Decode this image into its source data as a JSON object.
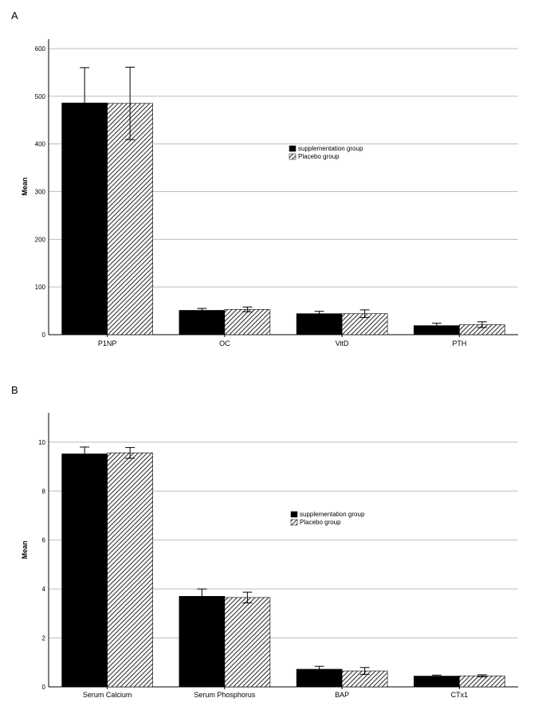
{
  "panels": [
    {
      "label": "A"
    },
    {
      "label": "B"
    }
  ],
  "colors": {
    "supplementation": "#000000",
    "placebo_hatch": "#4a4a4a",
    "grid": "#bdbdbd"
  },
  "chart_data": [
    {
      "type": "bar",
      "panel": "A",
      "ylabel": "Mean",
      "ylim": [
        0,
        620
      ],
      "yticks": [
        0,
        100,
        200,
        300,
        400,
        500,
        600
      ],
      "grid": true,
      "legend_position": "right-center",
      "categories": [
        "P1NP",
        "OC",
        "VitD",
        "PTH"
      ],
      "series": [
        {
          "name": "supplementation group",
          "values": [
            486,
            51,
            44,
            19
          ],
          "error": [
            74,
            4,
            5,
            5
          ]
        },
        {
          "name": "Placebo group",
          "values": [
            485,
            53,
            44,
            21
          ],
          "error": [
            76,
            5,
            8,
            6
          ]
        }
      ]
    },
    {
      "type": "bar",
      "panel": "B",
      "ylabel": "Mean",
      "ylim": [
        0,
        11.2
      ],
      "yticks": [
        0,
        2,
        4,
        6,
        8,
        10
      ],
      "grid": true,
      "legend_position": "right-center",
      "categories": [
        "Serum Calcium",
        "Serum Phosphorus",
        "BAP",
        "CTx1"
      ],
      "series": [
        {
          "name": "supplementation group",
          "values": [
            9.52,
            3.7,
            0.72,
            0.44
          ],
          "error": [
            0.28,
            0.3,
            0.12,
            0.04
          ]
        },
        {
          "name": "Placebo group",
          "values": [
            9.56,
            3.65,
            0.65,
            0.45
          ],
          "error": [
            0.22,
            0.22,
            0.14,
            0.04
          ]
        }
      ]
    }
  ]
}
